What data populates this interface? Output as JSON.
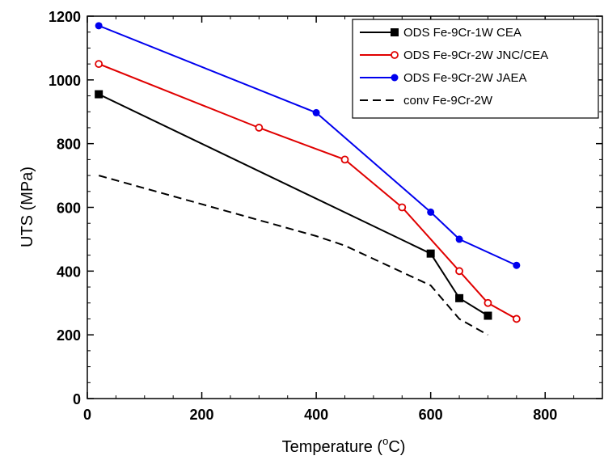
{
  "chart_data": {
    "type": "line",
    "title": "",
    "xlabel": "Temperature (",
    "xlabel_sup": "o",
    "xlabel_suffix": "C)",
    "ylabel": "UTS (MPa)",
    "xlim": [
      0,
      900
    ],
    "ylim": [
      0,
      1200
    ],
    "xticks": [
      0,
      200,
      400,
      600,
      800
    ],
    "yticks": [
      0,
      200,
      400,
      600,
      800,
      1000,
      1200
    ],
    "grid": false,
    "legend_position": "top-right",
    "series": [
      {
        "name": "ODS Fe-9Cr-1W CEA",
        "color": "#000000",
        "marker": "square-filled",
        "dash": "solid",
        "x": [
          20,
          600,
          650,
          700
        ],
        "y": [
          955,
          455,
          315,
          260
        ]
      },
      {
        "name": "ODS Fe-9Cr-2W JNC/CEA",
        "color": "#e00000",
        "marker": "circle-open",
        "dash": "solid",
        "x": [
          20,
          300,
          450,
          550,
          650,
          700,
          750
        ],
        "y": [
          1050,
          850,
          750,
          600,
          400,
          300,
          250
        ]
      },
      {
        "name": "ODS Fe-9Cr-2W JAEA",
        "color": "#0000ee",
        "marker": "circle-filled",
        "dash": "solid",
        "x": [
          20,
          400,
          600,
          650,
          750
        ],
        "y": [
          1170,
          897,
          585,
          500,
          418
        ]
      },
      {
        "name": "conv Fe-9Cr-2W",
        "color": "#000000",
        "marker": "none",
        "dash": "dashed",
        "x": [
          20,
          400,
          450,
          600,
          650,
          700
        ],
        "y": [
          700,
          510,
          480,
          355,
          250,
          200
        ]
      }
    ]
  }
}
